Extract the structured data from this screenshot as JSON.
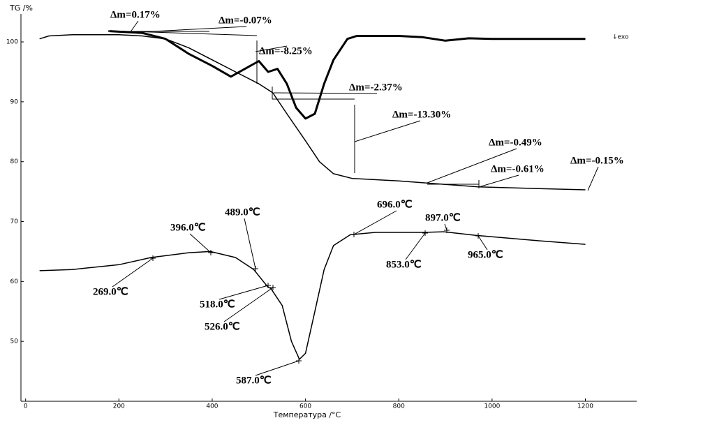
{
  "chart_data": {
    "type": "line",
    "y_label": "TG /%",
    "x_label": "Температура /°C",
    "exo_label": "↓exo",
    "xlim": [
      -10,
      1310
    ],
    "ylim": [
      40,
      103.5
    ],
    "xticks": [
      0,
      200,
      400,
      600,
      800,
      1000,
      1200
    ],
    "yticks": [
      50,
      60,
      70,
      80,
      90,
      100
    ],
    "series": [
      {
        "color": "#000000",
        "width": 1.5,
        "x": [
          30,
          50,
          100,
          200,
          250,
          300,
          350,
          400,
          450,
          500,
          530,
          560,
          600,
          630,
          660,
          700,
          800,
          900,
          970,
          1100,
          1200
        ],
        "values": [
          100.5,
          101,
          101.2,
          101.2,
          101,
          100.5,
          99,
          97,
          95,
          93,
          91.5,
          88,
          83.5,
          80,
          78,
          77.2,
          76.8,
          76.2,
          75.8,
          75.5,
          75.3
        ]
      },
      {
        "color": "#000000",
        "width": 3,
        "x": [
          180,
          250,
          300,
          350,
          400,
          440,
          470,
          500,
          520,
          540,
          560,
          580,
          600,
          620,
          640,
          660,
          690,
          710,
          800,
          850,
          900,
          950,
          1000,
          1100,
          1200
        ],
        "values": [
          101.8,
          101.5,
          100.5,
          98,
          96,
          94.2,
          95.5,
          96.8,
          95,
          95.5,
          93,
          89,
          87.2,
          88,
          93,
          97,
          100.5,
          101,
          101,
          100.8,
          100.2,
          100.6,
          100.5,
          100.5,
          100.5
        ]
      },
      {
        "color": "#000000",
        "width": 1.5,
        "x": [
          30,
          100,
          200,
          269,
          350,
          396,
          450,
          489,
          518,
          526,
          550,
          570,
          587,
          600,
          620,
          640,
          660,
          696,
          750,
          853,
          897,
          965,
          1100,
          1200
        ],
        "values": [
          61.8,
          62,
          62.8,
          64,
          64.8,
          65,
          64,
          62,
          59.2,
          58.8,
          56,
          50,
          47,
          48,
          55,
          62,
          66,
          67.8,
          68.2,
          68.2,
          68.3,
          67.7,
          66.8,
          66.2
        ]
      }
    ],
    "annotations": [
      "Δm=0.17%",
      "Δm=-0.07%",
      "Δm=-8.25%",
      "Δm=-2.37%",
      "Δm=-13.30%",
      "Δm=-0.49%",
      "Δm=-0.61%",
      "Δm=-0.15%",
      "396.0℃",
      "489.0℃",
      "696.0℃",
      "897.0℃",
      "269.0℃",
      "518.0℃",
      "526.0℃",
      "853.0℃",
      "965.0℃",
      "587.0℃"
    ]
  }
}
